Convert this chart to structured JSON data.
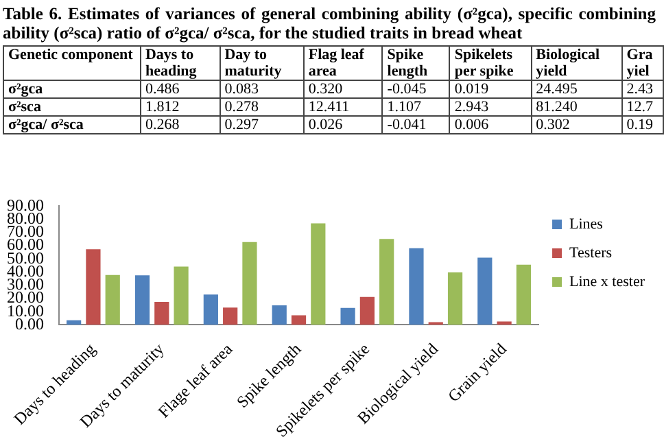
{
  "chart_data": [
    {
      "type": "other",
      "title": "Table 6. Estimates of variances of general combining ability (σ²gca), specific combining ability (σ²sca) ratio of σ²gca/ σ²sca, for the studied traits in bread wheat",
      "annotations": [
        "Genetic component",
        "Days to heading",
        "Day to maturity",
        "Flag leaf area",
        "Spike length",
        "Spikelets per spike",
        "Biological yield",
        "Gra yiel",
        "σ²gca",
        "0.486",
        "0.083",
        "0.320",
        "-0.045",
        "0.019",
        "24.495",
        "2.43",
        "σ²sca",
        "1.812",
        "0.278",
        "12.411",
        "1.107",
        "2.943",
        "81.240",
        "12.7",
        "σ²gca/ σ²sca",
        "0.268",
        "0.297",
        "0.026",
        "-0.041",
        "0.006",
        "0.302",
        "0.19"
      ]
    },
    {
      "type": "bar",
      "categories": [
        "Days to heading",
        "Days to maturity",
        "Flage leaf area",
        "Spike length",
        "Spikelets per spike",
        "Biological yield",
        "Grain yield"
      ],
      "series": [
        {
          "name": "Lines",
          "color": "#4f81bd",
          "values": [
            3.5,
            37.5,
            23,
            14.8,
            12.8,
            58.1,
            50.9
          ]
        },
        {
          "name": "Testers",
          "color": "#c0504d",
          "values": [
            57.3,
            17.4,
            13.1,
            7.3,
            21.2,
            2,
            2.6
          ]
        },
        {
          "name": "Line x tester",
          "color": "#9bbb59",
          "values": [
            37.8,
            44.2,
            62.8,
            77,
            65.1,
            39.8,
            45.6
          ]
        }
      ],
      "ylim": [
        0,
        90
      ],
      "yticks": [
        {
          "value": 0,
          "label": "0.00"
        },
        {
          "value": 10,
          "label": "10.00"
        },
        {
          "value": 20,
          "label": "20.00"
        },
        {
          "value": 30,
          "label": "30.00"
        },
        {
          "value": 40,
          "label": "40.00"
        },
        {
          "value": 50,
          "label": "50.00"
        },
        {
          "value": 60,
          "label": "60.00"
        },
        {
          "value": 70,
          "label": "70.00"
        },
        {
          "value": 80,
          "label": "80.00"
        },
        {
          "value": 90,
          "label": "90.00"
        }
      ],
      "grid": false,
      "legend": "top right"
    }
  ]
}
